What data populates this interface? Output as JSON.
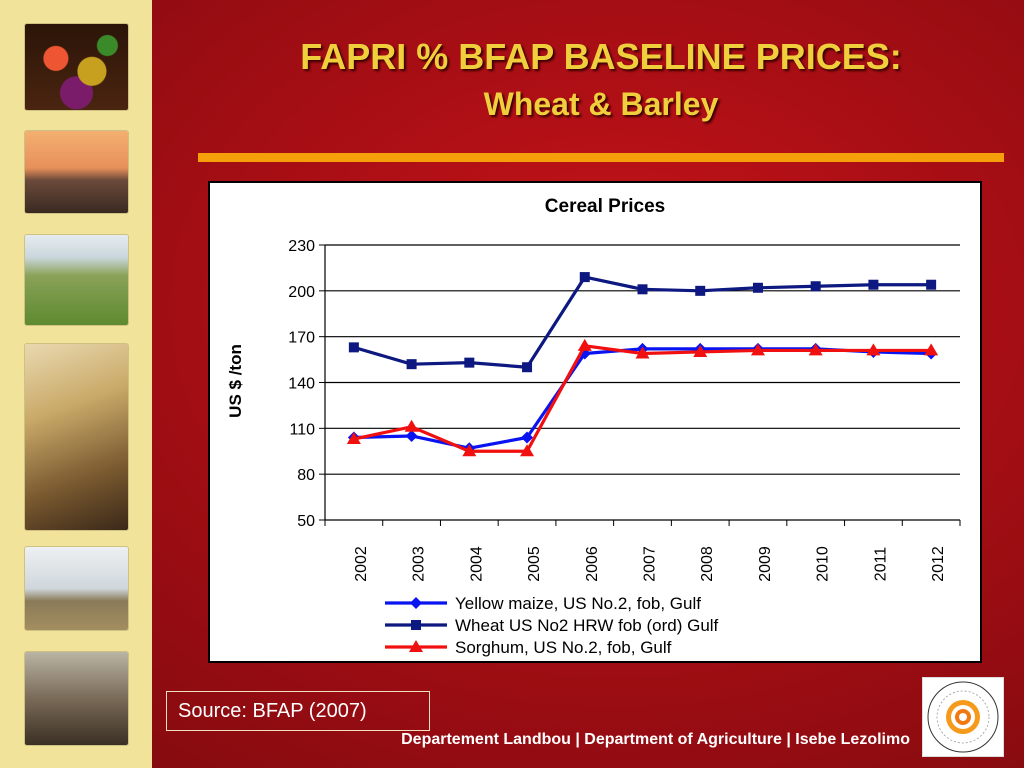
{
  "slide": {
    "title_line1": "FAPRI % BFAP BASELINE PRICES:",
    "title_line2": "Wheat & Barley",
    "source": "Source: BFAP (2007)",
    "footer": "Departement Landbou | Department of Agriculture | Isebe Lezolimo",
    "seal_text": "WESTERN CAPE • WES-KAAPLAND • INTSHONA KOLONI"
  },
  "colors": {
    "accent_title": "#f0cf3c",
    "rule": "#f5a00a",
    "sidebar": "#f2e39a"
  },
  "chart_data": {
    "type": "line",
    "title": "Cereal Prices",
    "xlabel": "",
    "ylabel": "US $ /ton",
    "ylim": [
      50,
      230
    ],
    "yticks": [
      50,
      80,
      110,
      140,
      170,
      200,
      230
    ],
    "grid": true,
    "legend_position": "bottom",
    "categories": [
      "2002",
      "2003",
      "2004",
      "2005",
      "2006",
      "2007",
      "2008",
      "2009",
      "2010",
      "2011",
      "2012"
    ],
    "series": [
      {
        "name": "Yellow  maize, US No.2, fob, Gulf",
        "color": "#0a14f0",
        "marker": "diamond",
        "values": [
          104,
          105,
          97,
          104,
          159,
          162,
          162,
          162,
          162,
          160,
          159
        ]
      },
      {
        "name": "Wheat US No2 HRW fob (ord) Gulf",
        "color": "#0d1880",
        "marker": "square",
        "values": [
          163,
          152,
          153,
          150,
          209,
          201,
          200,
          202,
          203,
          204,
          204
        ]
      },
      {
        "name": "Sorghum, US No.2, fob, Gulf",
        "color": "#f01010",
        "marker": "triangle",
        "values": [
          103,
          111,
          95,
          95,
          164,
          159,
          160,
          161,
          161,
          161,
          161
        ]
      }
    ]
  }
}
